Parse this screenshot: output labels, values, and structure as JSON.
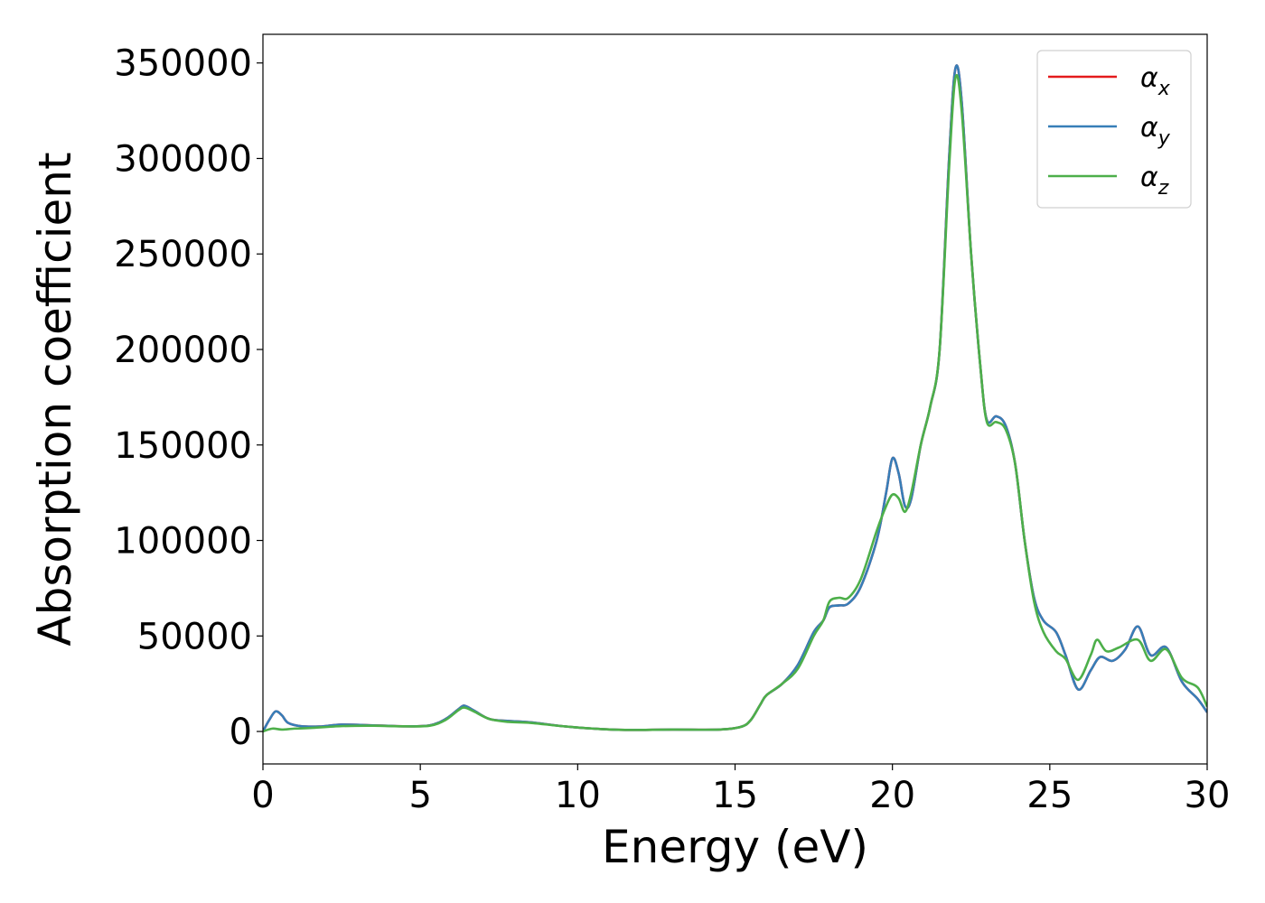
{
  "chart_data": {
    "type": "line",
    "title": "",
    "xlabel": "Energy (eV)",
    "ylabel": "Absorption coefficient",
    "xlim": [
      0,
      30
    ],
    "ylim": [
      -17000,
      365000
    ],
    "xticks": [
      0,
      5,
      10,
      15,
      20,
      25,
      30
    ],
    "yticks": [
      0,
      50000,
      100000,
      150000,
      200000,
      250000,
      300000,
      350000
    ],
    "grid": false,
    "legend_position": "top-right",
    "series": [
      {
        "name": "α_x",
        "legend_base": "α",
        "legend_sub": "x",
        "color": "#e41a1c",
        "points": [
          [
            0,
            0
          ],
          [
            0.2,
            6000
          ],
          [
            0.4,
            10500
          ],
          [
            0.6,
            8500
          ],
          [
            0.8,
            4500
          ],
          [
            1.2,
            2800
          ],
          [
            1.8,
            2600
          ],
          [
            2.5,
            3600
          ],
          [
            3.5,
            3200
          ],
          [
            4.5,
            2700
          ],
          [
            5.3,
            3200
          ],
          [
            5.8,
            6500
          ],
          [
            6.2,
            11500
          ],
          [
            6.4,
            13500
          ],
          [
            6.7,
            11000
          ],
          [
            7.2,
            6500
          ],
          [
            7.8,
            5500
          ],
          [
            8.5,
            4800
          ],
          [
            9.5,
            2800
          ],
          [
            10.5,
            1500
          ],
          [
            11.5,
            800
          ],
          [
            13,
            1000
          ],
          [
            14.5,
            1000
          ],
          [
            15.2,
            2500
          ],
          [
            15.5,
            6000
          ],
          [
            15.8,
            14000
          ],
          [
            16,
            19000
          ],
          [
            16.5,
            25000
          ],
          [
            17,
            35000
          ],
          [
            17.5,
            52000
          ],
          [
            17.8,
            58000
          ],
          [
            18,
            65000
          ],
          [
            18.3,
            66000
          ],
          [
            18.6,
            67000
          ],
          [
            19,
            76000
          ],
          [
            19.5,
            100000
          ],
          [
            19.8,
            125000
          ],
          [
            20,
            143000
          ],
          [
            20.2,
            135000
          ],
          [
            20.4,
            118000
          ],
          [
            20.6,
            122000
          ],
          [
            20.9,
            150000
          ],
          [
            21.2,
            170000
          ],
          [
            21.5,
            200000
          ],
          [
            21.8,
            300000
          ],
          [
            22,
            347000
          ],
          [
            22.2,
            330000
          ],
          [
            22.5,
            250000
          ],
          [
            22.8,
            190000
          ],
          [
            23,
            163000
          ],
          [
            23.3,
            165000
          ],
          [
            23.6,
            160000
          ],
          [
            23.9,
            140000
          ],
          [
            24.2,
            100000
          ],
          [
            24.5,
            70000
          ],
          [
            24.8,
            58000
          ],
          [
            25.2,
            52000
          ],
          [
            25.5,
            40000
          ],
          [
            25.9,
            22000
          ],
          [
            26.3,
            32000
          ],
          [
            26.6,
            39000
          ],
          [
            27,
            37000
          ],
          [
            27.4,
            43000
          ],
          [
            27.8,
            55000
          ],
          [
            28.2,
            40000
          ],
          [
            28.7,
            44000
          ],
          [
            29.2,
            26000
          ],
          [
            29.7,
            17000
          ],
          [
            30,
            10000
          ]
        ]
      },
      {
        "name": "α_y",
        "legend_base": "α",
        "legend_sub": "y",
        "color": "#377eb8",
        "points": [
          [
            0,
            0
          ],
          [
            0.2,
            6000
          ],
          [
            0.4,
            10500
          ],
          [
            0.6,
            8500
          ],
          [
            0.8,
            4500
          ],
          [
            1.2,
            2800
          ],
          [
            1.8,
            2600
          ],
          [
            2.5,
            3600
          ],
          [
            3.5,
            3200
          ],
          [
            4.5,
            2700
          ],
          [
            5.3,
            3200
          ],
          [
            5.8,
            6500
          ],
          [
            6.2,
            11500
          ],
          [
            6.4,
            13500
          ],
          [
            6.7,
            11000
          ],
          [
            7.2,
            6500
          ],
          [
            7.8,
            5500
          ],
          [
            8.5,
            4800
          ],
          [
            9.5,
            2800
          ],
          [
            10.5,
            1500
          ],
          [
            11.5,
            800
          ],
          [
            13,
            1000
          ],
          [
            14.5,
            1000
          ],
          [
            15.2,
            2500
          ],
          [
            15.5,
            6000
          ],
          [
            15.8,
            14000
          ],
          [
            16,
            19000
          ],
          [
            16.5,
            25000
          ],
          [
            17,
            35000
          ],
          [
            17.5,
            52000
          ],
          [
            17.8,
            58000
          ],
          [
            18,
            65000
          ],
          [
            18.3,
            66000
          ],
          [
            18.6,
            67000
          ],
          [
            19,
            76000
          ],
          [
            19.5,
            100000
          ],
          [
            19.8,
            125000
          ],
          [
            20,
            143000
          ],
          [
            20.2,
            135000
          ],
          [
            20.4,
            118000
          ],
          [
            20.6,
            122000
          ],
          [
            20.9,
            150000
          ],
          [
            21.2,
            170000
          ],
          [
            21.5,
            200000
          ],
          [
            21.8,
            300000
          ],
          [
            22,
            347000
          ],
          [
            22.2,
            330000
          ],
          [
            22.5,
            250000
          ],
          [
            22.8,
            190000
          ],
          [
            23,
            163000
          ],
          [
            23.3,
            165000
          ],
          [
            23.6,
            160000
          ],
          [
            23.9,
            140000
          ],
          [
            24.2,
            100000
          ],
          [
            24.5,
            70000
          ],
          [
            24.8,
            58000
          ],
          [
            25.2,
            52000
          ],
          [
            25.5,
            40000
          ],
          [
            25.9,
            22000
          ],
          [
            26.3,
            32000
          ],
          [
            26.6,
            39000
          ],
          [
            27,
            37000
          ],
          [
            27.4,
            43000
          ],
          [
            27.8,
            55000
          ],
          [
            28.2,
            40000
          ],
          [
            28.7,
            44000
          ],
          [
            29.2,
            26000
          ],
          [
            29.7,
            17000
          ],
          [
            30,
            10000
          ]
        ]
      },
      {
        "name": "α_z",
        "legend_base": "α",
        "legend_sub": "z",
        "color": "#4daf4a",
        "points": [
          [
            0,
            0
          ],
          [
            0.3,
            1500
          ],
          [
            0.6,
            1000
          ],
          [
            1,
            1500
          ],
          [
            1.5,
            1800
          ],
          [
            2.5,
            2800
          ],
          [
            3.5,
            3000
          ],
          [
            4.5,
            2700
          ],
          [
            5.3,
            3000
          ],
          [
            5.8,
            6000
          ],
          [
            6.2,
            11000
          ],
          [
            6.4,
            12500
          ],
          [
            6.7,
            10500
          ],
          [
            7.2,
            6500
          ],
          [
            7.8,
            5000
          ],
          [
            8.5,
            4500
          ],
          [
            9.5,
            2800
          ],
          [
            10.5,
            1500
          ],
          [
            11.5,
            800
          ],
          [
            13,
            1000
          ],
          [
            14.5,
            1000
          ],
          [
            15.2,
            2500
          ],
          [
            15.5,
            6000
          ],
          [
            15.8,
            14000
          ],
          [
            16,
            19000
          ],
          [
            16.5,
            25000
          ],
          [
            17,
            33000
          ],
          [
            17.5,
            50000
          ],
          [
            17.8,
            58000
          ],
          [
            18,
            68000
          ],
          [
            18.3,
            70000
          ],
          [
            18.6,
            70000
          ],
          [
            19,
            80000
          ],
          [
            19.5,
            105000
          ],
          [
            19.8,
            118000
          ],
          [
            20,
            124000
          ],
          [
            20.2,
            122000
          ],
          [
            20.4,
            115000
          ],
          [
            20.6,
            125000
          ],
          [
            20.9,
            150000
          ],
          [
            21.2,
            170000
          ],
          [
            21.5,
            200000
          ],
          [
            21.8,
            295000
          ],
          [
            22,
            342000
          ],
          [
            22.2,
            325000
          ],
          [
            22.5,
            250000
          ],
          [
            22.8,
            190000
          ],
          [
            23,
            162000
          ],
          [
            23.3,
            162000
          ],
          [
            23.6,
            158000
          ],
          [
            23.9,
            140000
          ],
          [
            24.2,
            100000
          ],
          [
            24.5,
            68000
          ],
          [
            24.8,
            52000
          ],
          [
            25.2,
            42000
          ],
          [
            25.5,
            38000
          ],
          [
            25.9,
            27000
          ],
          [
            26.3,
            40000
          ],
          [
            26.5,
            48000
          ],
          [
            26.8,
            42000
          ],
          [
            27.2,
            44000
          ],
          [
            27.8,
            48000
          ],
          [
            28.2,
            37000
          ],
          [
            28.7,
            43000
          ],
          [
            29.2,
            28000
          ],
          [
            29.7,
            23000
          ],
          [
            30,
            13000
          ]
        ]
      }
    ]
  }
}
